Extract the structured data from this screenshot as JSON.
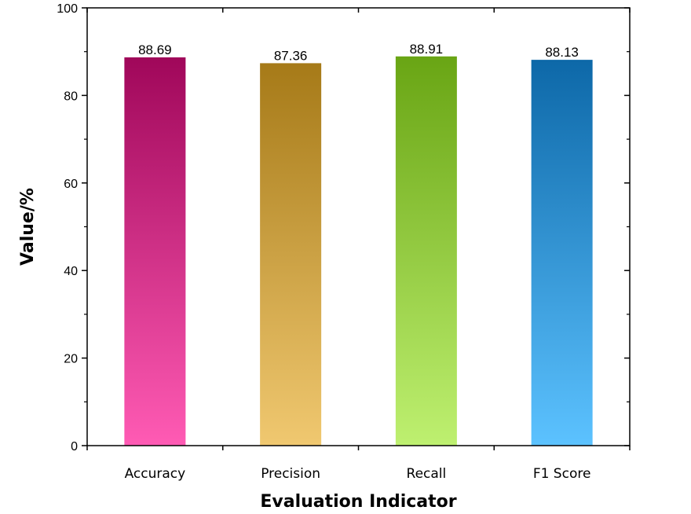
{
  "chart_data": {
    "type": "bar",
    "title": "",
    "xlabel": "Evaluation Indicator",
    "ylabel": "Value/%",
    "ylim": [
      0,
      100
    ],
    "yticks": [
      0,
      20,
      40,
      60,
      80,
      100
    ],
    "grid": false,
    "categories": [
      "Accuracy",
      "Precision",
      "Recall",
      "F1 Score"
    ],
    "values": [
      88.69,
      87.36,
      88.91,
      88.13
    ],
    "data_labels": [
      "88.69",
      "87.36",
      "88.91",
      "88.13"
    ],
    "bar_colors": [
      {
        "top": "#a0075a",
        "bottom": "#ff5bb4"
      },
      {
        "top": "#a67a18",
        "bottom": "#f0c870"
      },
      {
        "top": "#69a514",
        "bottom": "#bef070"
      },
      {
        "top": "#0d68a8",
        "bottom": "#5cc2ff"
      }
    ]
  }
}
